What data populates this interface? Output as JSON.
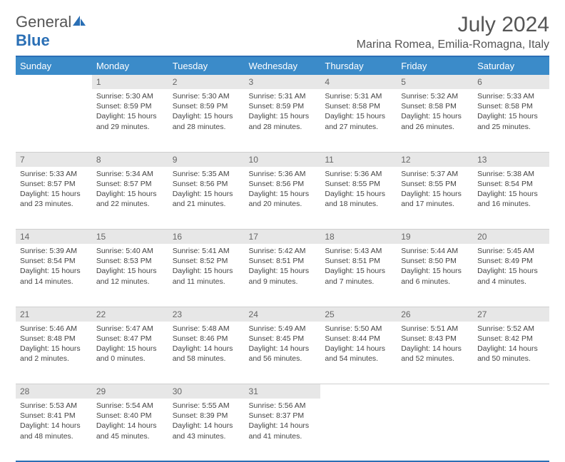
{
  "logo": {
    "text_general": "General",
    "text_blue": "Blue"
  },
  "title": "July 2024",
  "location": "Marina Romea, Emilia-Romagna, Italy",
  "colors": {
    "header_bg": "#3b8bc9",
    "accent": "#2a6fb5",
    "daynum_bg": "#e7e7e7",
    "text": "#444444"
  },
  "day_headers": [
    "Sunday",
    "Monday",
    "Tuesday",
    "Wednesday",
    "Thursday",
    "Friday",
    "Saturday"
  ],
  "weeks": [
    [
      {
        "num": "",
        "sunrise": "",
        "sunset": "",
        "daylight": ""
      },
      {
        "num": "1",
        "sunrise": "5:30 AM",
        "sunset": "8:59 PM",
        "daylight": "15 hours and 29 minutes."
      },
      {
        "num": "2",
        "sunrise": "5:30 AM",
        "sunset": "8:59 PM",
        "daylight": "15 hours and 28 minutes."
      },
      {
        "num": "3",
        "sunrise": "5:31 AM",
        "sunset": "8:59 PM",
        "daylight": "15 hours and 28 minutes."
      },
      {
        "num": "4",
        "sunrise": "5:31 AM",
        "sunset": "8:58 PM",
        "daylight": "15 hours and 27 minutes."
      },
      {
        "num": "5",
        "sunrise": "5:32 AM",
        "sunset": "8:58 PM",
        "daylight": "15 hours and 26 minutes."
      },
      {
        "num": "6",
        "sunrise": "5:33 AM",
        "sunset": "8:58 PM",
        "daylight": "15 hours and 25 minutes."
      }
    ],
    [
      {
        "num": "7",
        "sunrise": "5:33 AM",
        "sunset": "8:57 PM",
        "daylight": "15 hours and 23 minutes."
      },
      {
        "num": "8",
        "sunrise": "5:34 AM",
        "sunset": "8:57 PM",
        "daylight": "15 hours and 22 minutes."
      },
      {
        "num": "9",
        "sunrise": "5:35 AM",
        "sunset": "8:56 PM",
        "daylight": "15 hours and 21 minutes."
      },
      {
        "num": "10",
        "sunrise": "5:36 AM",
        "sunset": "8:56 PM",
        "daylight": "15 hours and 20 minutes."
      },
      {
        "num": "11",
        "sunrise": "5:36 AM",
        "sunset": "8:55 PM",
        "daylight": "15 hours and 18 minutes."
      },
      {
        "num": "12",
        "sunrise": "5:37 AM",
        "sunset": "8:55 PM",
        "daylight": "15 hours and 17 minutes."
      },
      {
        "num": "13",
        "sunrise": "5:38 AM",
        "sunset": "8:54 PM",
        "daylight": "15 hours and 16 minutes."
      }
    ],
    [
      {
        "num": "14",
        "sunrise": "5:39 AM",
        "sunset": "8:54 PM",
        "daylight": "15 hours and 14 minutes."
      },
      {
        "num": "15",
        "sunrise": "5:40 AM",
        "sunset": "8:53 PM",
        "daylight": "15 hours and 12 minutes."
      },
      {
        "num": "16",
        "sunrise": "5:41 AM",
        "sunset": "8:52 PM",
        "daylight": "15 hours and 11 minutes."
      },
      {
        "num": "17",
        "sunrise": "5:42 AM",
        "sunset": "8:51 PM",
        "daylight": "15 hours and 9 minutes."
      },
      {
        "num": "18",
        "sunrise": "5:43 AM",
        "sunset": "8:51 PM",
        "daylight": "15 hours and 7 minutes."
      },
      {
        "num": "19",
        "sunrise": "5:44 AM",
        "sunset": "8:50 PM",
        "daylight": "15 hours and 6 minutes."
      },
      {
        "num": "20",
        "sunrise": "5:45 AM",
        "sunset": "8:49 PM",
        "daylight": "15 hours and 4 minutes."
      }
    ],
    [
      {
        "num": "21",
        "sunrise": "5:46 AM",
        "sunset": "8:48 PM",
        "daylight": "15 hours and 2 minutes."
      },
      {
        "num": "22",
        "sunrise": "5:47 AM",
        "sunset": "8:47 PM",
        "daylight": "15 hours and 0 minutes."
      },
      {
        "num": "23",
        "sunrise": "5:48 AM",
        "sunset": "8:46 PM",
        "daylight": "14 hours and 58 minutes."
      },
      {
        "num": "24",
        "sunrise": "5:49 AM",
        "sunset": "8:45 PM",
        "daylight": "14 hours and 56 minutes."
      },
      {
        "num": "25",
        "sunrise": "5:50 AM",
        "sunset": "8:44 PM",
        "daylight": "14 hours and 54 minutes."
      },
      {
        "num": "26",
        "sunrise": "5:51 AM",
        "sunset": "8:43 PM",
        "daylight": "14 hours and 52 minutes."
      },
      {
        "num": "27",
        "sunrise": "5:52 AM",
        "sunset": "8:42 PM",
        "daylight": "14 hours and 50 minutes."
      }
    ],
    [
      {
        "num": "28",
        "sunrise": "5:53 AM",
        "sunset": "8:41 PM",
        "daylight": "14 hours and 48 minutes."
      },
      {
        "num": "29",
        "sunrise": "5:54 AM",
        "sunset": "8:40 PM",
        "daylight": "14 hours and 45 minutes."
      },
      {
        "num": "30",
        "sunrise": "5:55 AM",
        "sunset": "8:39 PM",
        "daylight": "14 hours and 43 minutes."
      },
      {
        "num": "31",
        "sunrise": "5:56 AM",
        "sunset": "8:37 PM",
        "daylight": "14 hours and 41 minutes."
      },
      {
        "num": "",
        "sunrise": "",
        "sunset": "",
        "daylight": ""
      },
      {
        "num": "",
        "sunrise": "",
        "sunset": "",
        "daylight": ""
      },
      {
        "num": "",
        "sunrise": "",
        "sunset": "",
        "daylight": ""
      }
    ]
  ]
}
